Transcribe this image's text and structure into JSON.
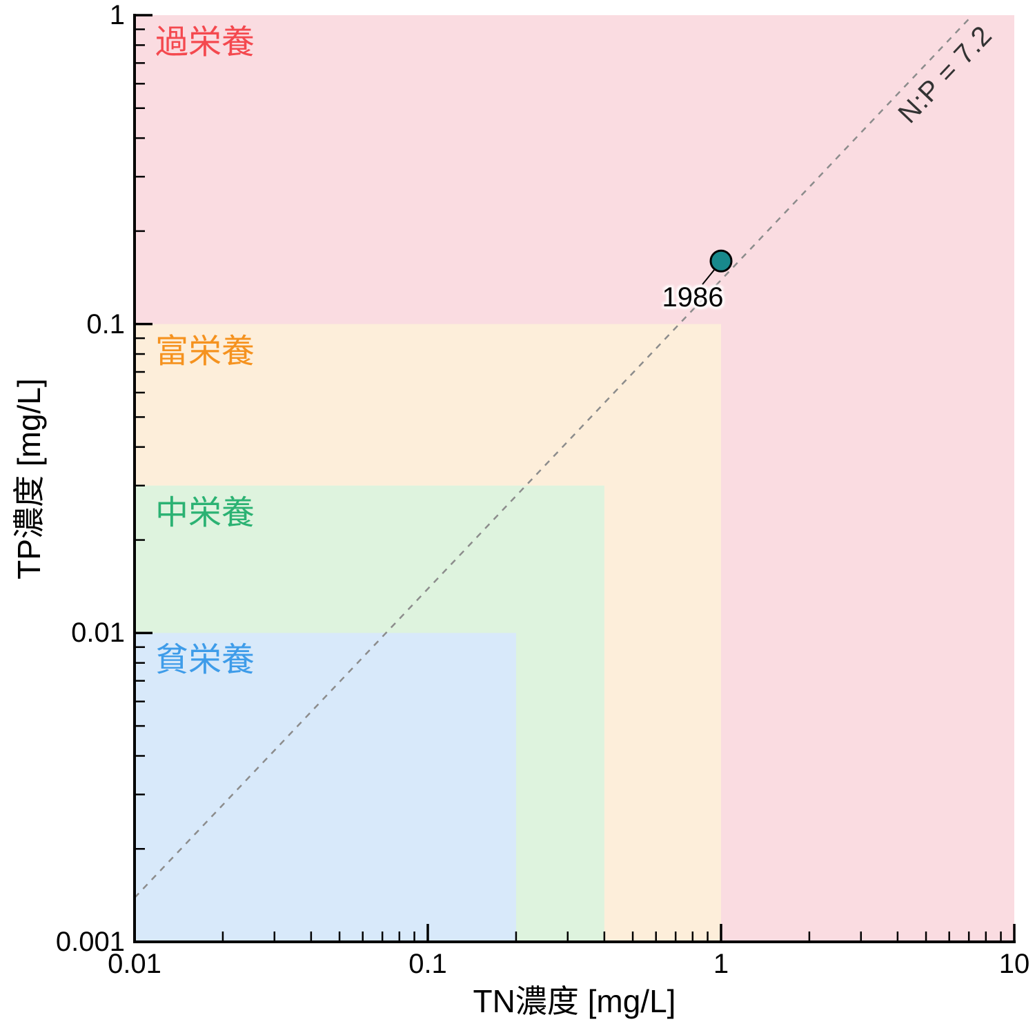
{
  "chart_data": {
    "type": "scatter",
    "x_axis": {
      "label": "TN濃度 [mg/L]",
      "scale": "log",
      "min": 0.01,
      "max": 10,
      "ticks": [
        0.01,
        0.1,
        1,
        10
      ],
      "tick_labels": [
        "0.01",
        "0.1",
        "1",
        "10"
      ]
    },
    "y_axis": {
      "label": "TP濃度 [mg/L]",
      "scale": "log",
      "min": 0.001,
      "max": 1,
      "ticks": [
        1,
        0.1,
        0.01,
        0.001
      ],
      "tick_labels": [
        "1",
        "0.1",
        "0.01",
        "0.001"
      ]
    },
    "regions": [
      {
        "name": "hypereutrophic",
        "label": "過栄養",
        "tn_max": 10,
        "tp_max": 1,
        "fill": "#fadce1",
        "label_color": "#f4494f"
      },
      {
        "name": "eutrophic",
        "label": "富栄養",
        "tn_max": 1,
        "tp_max": 0.1,
        "fill": "#fdeeda",
        "label_color": "#f5921f"
      },
      {
        "name": "mesotrophic",
        "label": "中栄養",
        "tn_max": 0.4,
        "tp_max": 0.03,
        "fill": "#def3de",
        "label_color": "#2bb273"
      },
      {
        "name": "oligotrophic",
        "label": "貧栄養",
        "tn_max": 0.2,
        "tp_max": 0.01,
        "fill": "#d8e9fa",
        "label_color": "#3e9ce9"
      }
    ],
    "reference_line": {
      "label": "N:P = 7.2",
      "ratio": 7.2,
      "style": "dashed",
      "color": "#8c8c8c"
    },
    "points": [
      {
        "label": "1986",
        "tn": 1.0,
        "tp": 0.16,
        "fill": "#18898c",
        "stroke": "#000000"
      }
    ]
  }
}
